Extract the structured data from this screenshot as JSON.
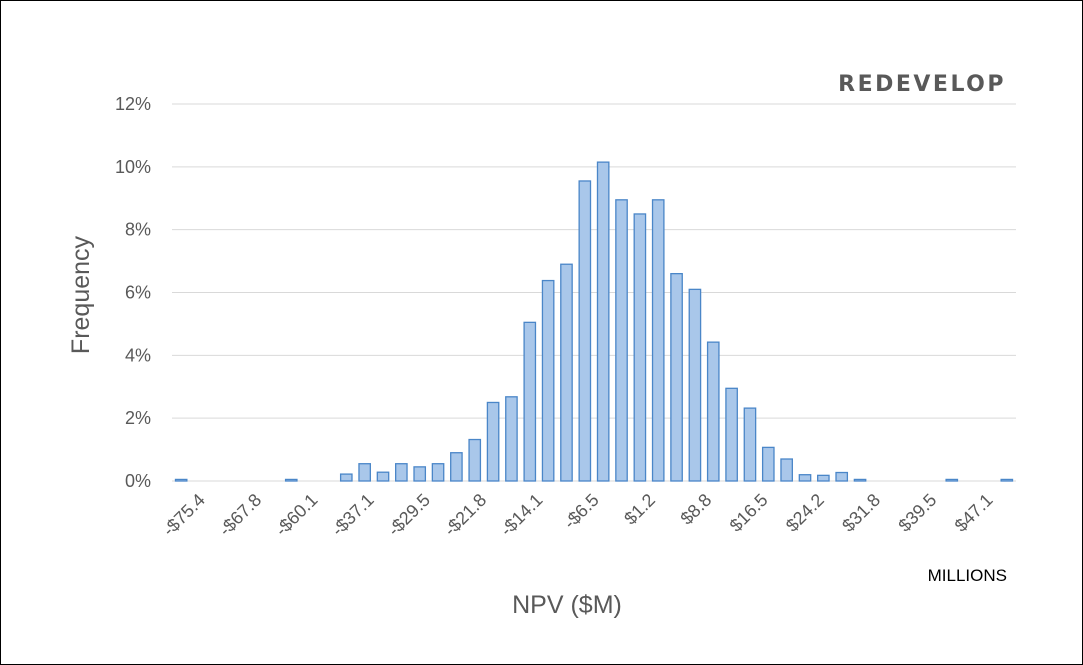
{
  "chart_data": {
    "type": "bar",
    "title": "REDEVELOP",
    "xlabel": "NPV ($M)",
    "ylabel": "Frequency",
    "units_label": "MILLIONS",
    "ylim": [
      0,
      12
    ],
    "yticks": [
      "0%",
      "2%",
      "4%",
      "6%",
      "8%",
      "10%",
      "12%"
    ],
    "grid": true,
    "legend": "none",
    "xtick_labels": [
      "-$75.4",
      "-$67.8",
      "-$60.1",
      "-$37.1",
      "-$29.5",
      "-$21.8",
      "-$14.1",
      "-$6.5",
      "$1.2",
      "$8.8",
      "$16.5",
      "$24.2",
      "$31.8",
      "$39.5",
      "$47.1"
    ],
    "values": [
      0.05,
      0,
      0,
      0,
      0,
      0,
      0.05,
      0,
      0,
      0.22,
      0.55,
      0.28,
      0.55,
      0.45,
      0.55,
      0.9,
      1.32,
      2.5,
      2.68,
      5.05,
      6.38,
      6.9,
      9.55,
      10.15,
      8.95,
      8.5,
      8.95,
      6.6,
      6.1,
      4.42,
      2.95,
      2.32,
      1.07,
      0.7,
      0.2,
      0.18,
      0.27,
      0.05,
      0,
      0,
      0,
      0,
      0.05,
      0,
      0,
      0.05
    ]
  }
}
